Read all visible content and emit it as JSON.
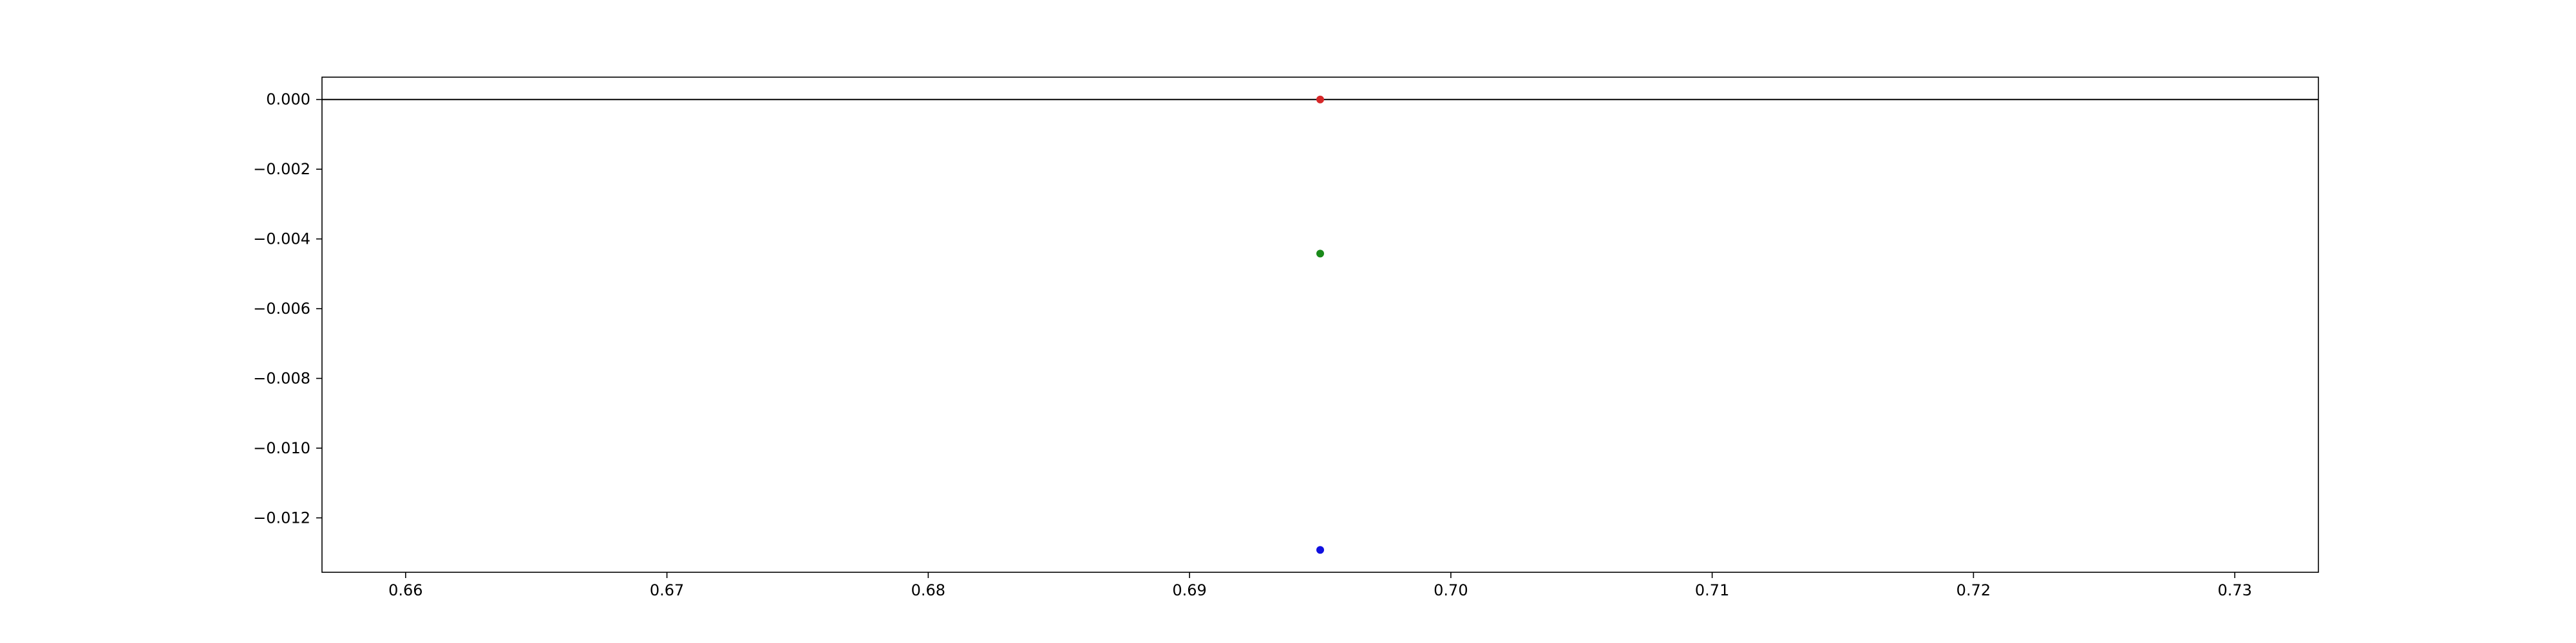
{
  "chart_data": {
    "type": "scatter",
    "title": "",
    "xlabel": "",
    "ylabel": "",
    "xlim": [
      0.6568,
      0.7332
    ],
    "ylim": [
      -0.01356,
      0.00064
    ],
    "x_ticks": [
      0.66,
      0.67,
      0.68,
      0.69,
      0.7,
      0.71,
      0.72,
      0.73
    ],
    "x_tick_labels": [
      "0.66",
      "0.67",
      "0.68",
      "0.69",
      "0.70",
      "0.71",
      "0.72",
      "0.73"
    ],
    "y_ticks": [
      0.0,
      -0.002,
      -0.004,
      -0.006,
      -0.008,
      -0.01,
      -0.012
    ],
    "y_tick_labels": [
      "0.000",
      "−0.002",
      "−0.004",
      "−0.006",
      "−0.008",
      "−0.010",
      "−0.012"
    ],
    "hline": {
      "y": 0.0,
      "color": "#000000"
    },
    "grid": false,
    "legend": "none",
    "points": [
      {
        "name": "red",
        "x": 0.695,
        "y": 0.0,
        "color": "#d62728"
      },
      {
        "name": "green",
        "x": 0.695,
        "y": -0.00442,
        "color": "#1a8a1a"
      },
      {
        "name": "blue",
        "x": 0.695,
        "y": -0.01292,
        "color": "#1010e0"
      }
    ]
  }
}
